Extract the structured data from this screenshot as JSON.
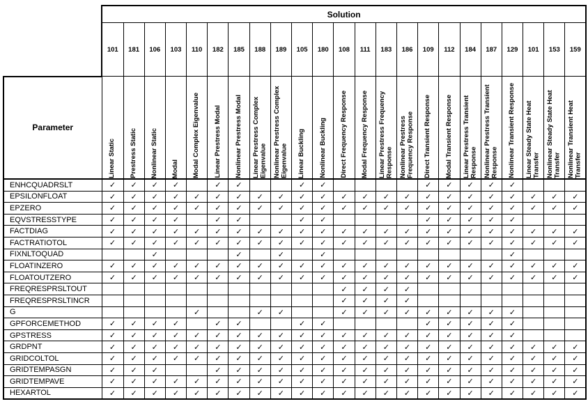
{
  "table": {
    "group_header": "Solution",
    "parameter_header": "Parameter",
    "check_symbol": "✓",
    "columns": [
      {
        "num": "101",
        "name": "Linear Static"
      },
      {
        "num": "181",
        "name": "Prestress Static"
      },
      {
        "num": "106",
        "name": "Nonlinear Static"
      },
      {
        "num": "103",
        "name": "Modal"
      },
      {
        "num": "110",
        "name": "Modal Complex Eigenvalue"
      },
      {
        "num": "182",
        "name": "Linear Prestress Modal"
      },
      {
        "num": "185",
        "name": "Nonlinear Prestress Modal"
      },
      {
        "num": "188",
        "name": "Linear Prestress Complex Eigenvalue"
      },
      {
        "num": "189",
        "name": "Nonlinear Prestress Complex Eigenvalue"
      },
      {
        "num": "105",
        "name": "Linear Buckling"
      },
      {
        "num": "180",
        "name": "Nonlinear Buckling"
      },
      {
        "num": "108",
        "name": "Direct Frequency Response"
      },
      {
        "num": "111",
        "name": "Modal Frequency Response"
      },
      {
        "num": "183",
        "name": "Linear Prestress Frequency Response"
      },
      {
        "num": "186",
        "name": "Nonlinear Prestress Frequency Response"
      },
      {
        "num": "109",
        "name": "Direct Transient Response"
      },
      {
        "num": "112",
        "name": "Modal Transient Response"
      },
      {
        "num": "184",
        "name": "Linear Prestress Transient Response"
      },
      {
        "num": "187",
        "name": "Nonlinear Prestress Transient Response"
      },
      {
        "num": "129",
        "name": "Nonlinear Transient Response"
      },
      {
        "num": "101",
        "name": "Linear Steady State Heat Transfer"
      },
      {
        "num": "153",
        "name": "Nonlinear Steady State Heat Transfer"
      },
      {
        "num": "159",
        "name": "Nonlinear Transient Heat Transfer"
      }
    ],
    "rows": [
      {
        "param": "ENHCQUADRSLT",
        "checks": "11110110011000011111000"
      },
      {
        "param": "EPSILONFLOAT",
        "checks": "11111111111111111111111"
      },
      {
        "param": "EPZERO",
        "checks": "11111111111111111111111"
      },
      {
        "param": "EQVSTRESSTYPE",
        "checks": "11110110011000011111000"
      },
      {
        "param": "FACTDIAG",
        "checks": "11111111111111111111111"
      },
      {
        "param": "FACTRATIOTOL",
        "checks": "11111111111111111111111"
      },
      {
        "param": "FIXNLTOQUAD",
        "checks": "00100010101000000001000"
      },
      {
        "param": "FLOATINZERO",
        "checks": "11111111111111111111111"
      },
      {
        "param": "FLOATOUTZERO",
        "checks": "11111111111111111111111"
      },
      {
        "param": "FREQRESPRSLTOUT",
        "checks": "00000000000111100000000"
      },
      {
        "param": "FREQRESPRSLTINCR",
        "checks": "00000000000111100000000"
      },
      {
        "param": "G",
        "checks": "00001001100111111111000"
      },
      {
        "param": "GPFORCEMETHOD",
        "checks": "11110110011000011111000"
      },
      {
        "param": "GPSTRESS",
        "checks": "11111111111111111111000"
      },
      {
        "param": "GRDPNT",
        "checks": "11111111111111111111111"
      },
      {
        "param": "GRIDCOLTOL",
        "checks": "11111111111111111111111"
      },
      {
        "param": "GRIDTEMPASGN",
        "checks": "11100111111111111111111"
      },
      {
        "param": "GRIDTEMPAVE",
        "checks": "11111111111111111111111"
      },
      {
        "param": "HEXARTOL",
        "checks": "11111111111111111111111"
      }
    ]
  }
}
